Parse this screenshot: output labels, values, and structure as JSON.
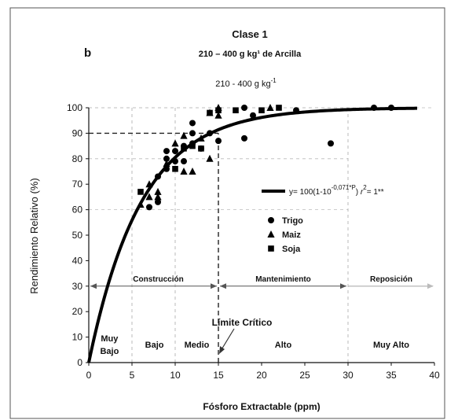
{
  "panel_letter": "b",
  "chart_data": {
    "type": "scatter",
    "title": "Clase 1",
    "subtitle": "210 – 400 g kg¹ de Arcilla",
    "inner_title": "210 - 400 g kg",
    "inner_title_sup": "-1",
    "xlabel": "Fósforo Extractable (ppm)",
    "ylabel": "Rendimiento Relativo (%)",
    "xlim": [
      0,
      40
    ],
    "ylim": [
      0,
      100
    ],
    "xticks": [
      0,
      5,
      10,
      15,
      20,
      25,
      30,
      35,
      40
    ],
    "yticks": [
      0,
      10,
      20,
      30,
      40,
      50,
      60,
      70,
      80,
      90,
      100
    ],
    "grid": "dashed-partial",
    "equation": {
      "prefix": "y= 100(1-10",
      "exponent": "-0,071*P",
      "suffix": ")",
      "r_label": "r",
      "r_exp": "2",
      "r_value": "= 1**"
    },
    "curve": {
      "model": "y = 100*(1-10^(-0.071*P))",
      "x_start": 0,
      "x_end": 38
    },
    "series": [
      {
        "name": "Trigo",
        "marker": "circle",
        "points": [
          [
            7,
            61
          ],
          [
            8,
            63
          ],
          [
            8,
            73
          ],
          [
            9,
            76
          ],
          [
            9,
            80
          ],
          [
            9,
            83
          ],
          [
            10,
            79
          ],
          [
            10,
            83
          ],
          [
            11,
            85
          ],
          [
            11,
            79
          ],
          [
            12,
            94
          ],
          [
            12,
            90
          ],
          [
            12,
            86
          ],
          [
            13,
            84
          ],
          [
            14,
            90
          ],
          [
            15,
            87
          ],
          [
            18,
            100
          ],
          [
            18,
            88
          ],
          [
            19,
            97
          ],
          [
            24,
            99
          ],
          [
            28,
            86
          ],
          [
            33,
            100
          ],
          [
            35,
            100
          ]
        ]
      },
      {
        "name": "Maiz",
        "marker": "triangle",
        "points": [
          [
            6,
            62
          ],
          [
            7,
            65
          ],
          [
            7,
            70
          ],
          [
            8,
            65
          ],
          [
            8,
            67
          ],
          [
            9,
            78
          ],
          [
            10,
            86
          ],
          [
            11,
            89
          ],
          [
            11,
            75
          ],
          [
            12,
            75
          ],
          [
            13,
            88
          ],
          [
            14,
            80
          ],
          [
            14,
            98
          ],
          [
            15,
            100
          ],
          [
            15,
            97
          ],
          [
            21,
            100
          ]
        ]
      },
      {
        "name": "Soja",
        "marker": "square",
        "points": [
          [
            6,
            67
          ],
          [
            10,
            76
          ],
          [
            11,
            84
          ],
          [
            12,
            85
          ],
          [
            13,
            84
          ],
          [
            14,
            98
          ],
          [
            15,
            99
          ],
          [
            17,
            99
          ],
          [
            20,
            99
          ],
          [
            22,
            100
          ]
        ]
      }
    ],
    "dashed_lines": [
      {
        "kind": "horizontal",
        "y": 90,
        "x_from": 0,
        "x_to": 15
      },
      {
        "kind": "vertical",
        "x": 15,
        "y_from": 0,
        "y_to": 90
      }
    ],
    "zones": {
      "arrow_y": 30,
      "construction": {
        "label": "Construcción",
        "x_from": 0,
        "x_to": 15
      },
      "maintenance": {
        "label": "Mantenimiento",
        "x_from": 15,
        "x_to": 30
      },
      "replacement": {
        "label": "Reposición",
        "x_from": 30,
        "x_to": 40
      }
    },
    "annotation": {
      "text": "Límite Crítico",
      "x": 15,
      "y": 0
    },
    "categories": [
      {
        "lines": [
          "Muy",
          "Bajo"
        ],
        "x": 2.4
      },
      {
        "lines": [
          "Bajo"
        ],
        "x": 7.6
      },
      {
        "lines": [
          "Medio"
        ],
        "x": 12.5
      },
      {
        "lines": [
          "Alto"
        ],
        "x": 22.5
      },
      {
        "lines": [
          "Muy Alto"
        ],
        "x": 35
      }
    ],
    "category_lines_x": [
      5,
      10,
      30
    ],
    "legend": {
      "placement": "right-middle",
      "entries": [
        {
          "label": "Trigo",
          "marker": "circle"
        },
        {
          "label": "Maiz",
          "marker": "triangle"
        },
        {
          "label": "Soja",
          "marker": "square"
        }
      ]
    }
  }
}
